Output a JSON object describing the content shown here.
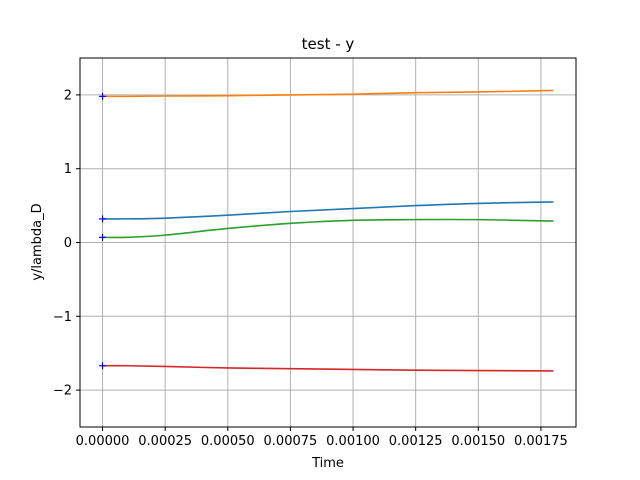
{
  "chart_data": {
    "type": "line",
    "title": "test - y",
    "xlabel": "Time",
    "ylabel": "y/lambda_D",
    "xlim": [
      -9e-05,
      0.00189
    ],
    "ylim": [
      -2.5,
      2.5
    ],
    "xticks": [
      0,
      0.00025,
      0.0005,
      0.00075,
      0.001,
      0.00125,
      0.0015,
      0.00175
    ],
    "xtick_labels": [
      "0.00000",
      "0.00025",
      "0.00050",
      "0.00075",
      "0.00100",
      "0.00125",
      "0.00150",
      "0.00175"
    ],
    "yticks": [
      -2,
      -1,
      0,
      1,
      2
    ],
    "ytick_labels": [
      "−2",
      "−1",
      "0",
      "1",
      "2"
    ],
    "grid": true,
    "x": [
      0,
      0.0001,
      0.00025,
      0.0005,
      0.00075,
      0.001,
      0.00125,
      0.0015,
      0.0018
    ],
    "series": [
      {
        "color": "#1f77b4",
        "values": [
          0.32,
          0.32,
          0.33,
          0.37,
          0.42,
          0.46,
          0.5,
          0.53,
          0.55
        ]
      },
      {
        "color": "#ff7f0e",
        "values": [
          1.98,
          1.98,
          1.985,
          1.99,
          2.0,
          2.01,
          2.03,
          2.04,
          2.06
        ]
      },
      {
        "color": "#2ca02c",
        "values": [
          0.07,
          0.07,
          0.1,
          0.19,
          0.26,
          0.3,
          0.31,
          0.31,
          0.29
        ]
      },
      {
        "color": "#d62728",
        "values": [
          -1.67,
          -1.67,
          -1.68,
          -1.7,
          -1.71,
          -1.72,
          -1.73,
          -1.735,
          -1.74
        ]
      }
    ],
    "start_markers": {
      "color": "#0000ff",
      "symbol": "+",
      "x": [
        0,
        0,
        0,
        0
      ],
      "y": [
        0.32,
        1.98,
        0.07,
        -1.67
      ]
    }
  }
}
